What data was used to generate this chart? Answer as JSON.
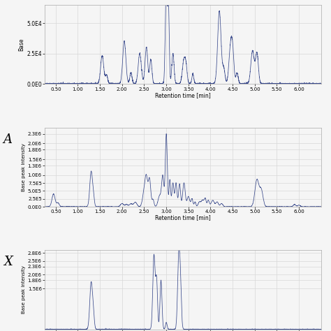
{
  "line_color": "#3a4a8c",
  "bg_color": "#f5f5f5",
  "grid_color": "#d8d8d8",
  "axis_bg": "#f5f5f5",
  "xlabel": "Retention time [min]",
  "ylabel": "Base peak intensity",
  "xlim": [
    0.25,
    6.5
  ],
  "xticks": [
    0.5,
    1.0,
    1.5,
    2.0,
    2.5,
    3.0,
    3.5,
    4.0,
    4.5,
    5.0,
    5.5,
    6.0
  ],
  "panel1": {
    "ylim": [
      0,
      65000.0
    ],
    "yticks_labels": [
      "0.0E0",
      "2.5E4",
      "5.0E4"
    ],
    "yticks_vals": [
      0,
      25000,
      50000
    ],
    "ylabel": "Base"
  },
  "panel2": {
    "ylim": [
      0,
      2500000.0
    ],
    "yticks_labels": [
      "0.0E0",
      "2.5E5",
      "5.0E5",
      "7.5E5",
      "1.0E6",
      "1.3E6",
      "1.5E6",
      "1.8E6",
      "2.0E6",
      "2.3E6"
    ],
    "yticks_vals": [
      0,
      250000.0,
      500000.0,
      750000.0,
      1000000.0,
      1300000.0,
      1500000.0,
      1800000.0,
      2000000.0,
      2300000.0
    ],
    "label": "A"
  },
  "panel3": {
    "ylim_min": 0,
    "ylim_max": 2900000.0,
    "yticks_labels": [
      "1.5E6",
      "1.8E6",
      "2.0E6",
      "2.3E6",
      "2.5E6",
      "2.8E6"
    ],
    "yticks_vals": [
      1500000.0,
      1800000.0,
      2000000.0,
      2300000.0,
      2500000.0,
      2800000.0
    ],
    "label": "X"
  }
}
